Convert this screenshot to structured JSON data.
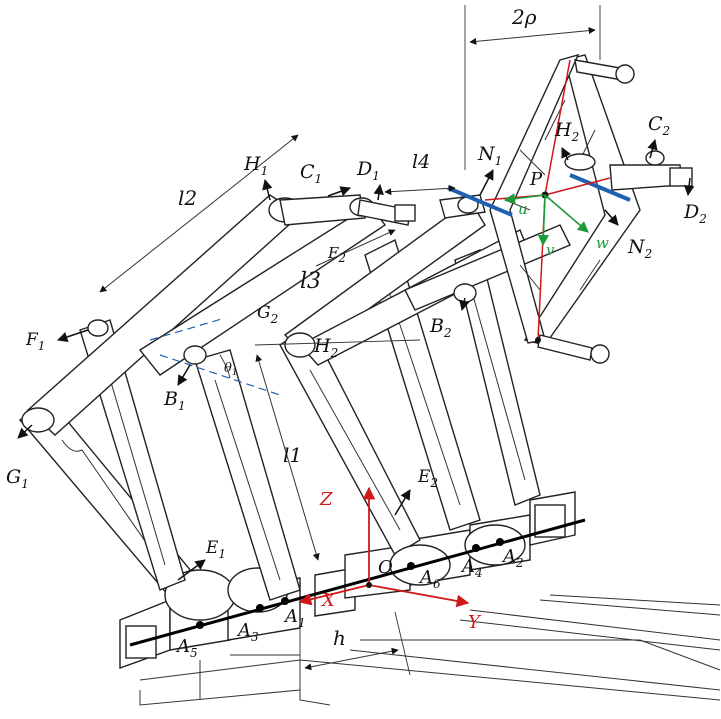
{
  "colors": {
    "frame_axes": "#d01818",
    "platform_axes": "#1a9a3a",
    "guide_lines": "#2060b0",
    "ink": "#222222"
  },
  "labels": {
    "two_rho": "2ρ",
    "H1": {
      "main": "H",
      "sub": "1"
    },
    "C1": {
      "main": "C",
      "sub": "1"
    },
    "D1": {
      "main": "D",
      "sub": "1"
    },
    "l4": "l4",
    "N1": {
      "main": "N",
      "sub": "1"
    },
    "H2_top": {
      "main": "H",
      "sub": "2"
    },
    "C2": {
      "main": "C",
      "sub": "2"
    },
    "P": "P",
    "D2": {
      "main": "D",
      "sub": "2"
    },
    "u": "u",
    "v": "v",
    "w": "w",
    "N2": {
      "main": "N",
      "sub": "2"
    },
    "l2": "l2",
    "l3": "l3",
    "F2": {
      "main": "F",
      "sub": "2"
    },
    "G2": {
      "main": "G",
      "sub": "2"
    },
    "B2": {
      "main": "B",
      "sub": "2"
    },
    "F1": {
      "main": "F",
      "sub": "1"
    },
    "H2_mid": {
      "main": "H",
      "sub": "2"
    },
    "B1": {
      "main": "B",
      "sub": "1"
    },
    "theta1": {
      "main": "θ",
      "sub": "1"
    },
    "G1": {
      "main": "G",
      "sub": "1"
    },
    "l1": "l1",
    "E2": {
      "main": "E",
      "sub": "2"
    },
    "Z": "Z",
    "E1": {
      "main": "E",
      "sub": "1"
    },
    "O": "O",
    "A6": {
      "main": "A",
      "sub": "6"
    },
    "A4": {
      "main": "A",
      "sub": "4"
    },
    "A2": {
      "main": "A",
      "sub": "2"
    },
    "X": "X",
    "A1": {
      "main": "A",
      "sub": "1"
    },
    "A3": {
      "main": "A",
      "sub": "3"
    },
    "A5": {
      "main": "A",
      "sub": "5"
    },
    "Y": "Y",
    "h": "h"
  }
}
